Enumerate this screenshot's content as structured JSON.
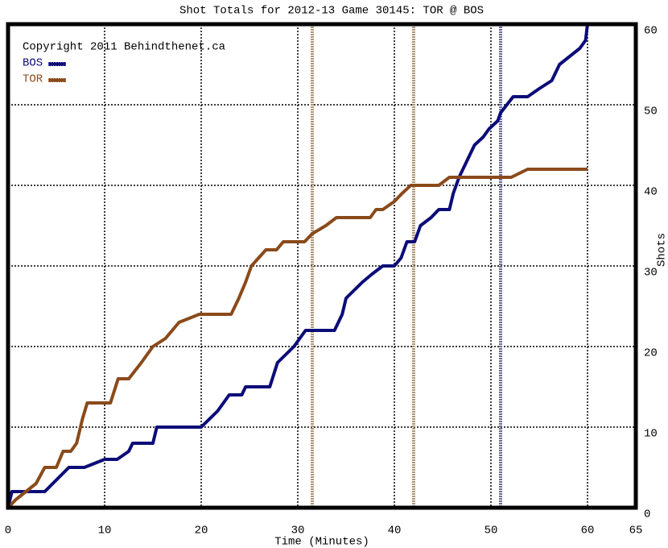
{
  "chart_data": {
    "type": "line",
    "title": "Shot Totals for 2012-13 Game 30145: TOR @ BOS",
    "annotation": "Copyright 2011 Behindthenet.ca",
    "x_label": "Time (Minutes)",
    "y_label": "Shots",
    "xlim": [
      0,
      65
    ],
    "xticks": [
      0,
      10,
      20,
      30,
      40,
      50,
      60,
      65
    ],
    "ylim": [
      0,
      60
    ],
    "yticks": [
      0,
      10,
      20,
      30,
      40,
      50,
      60
    ],
    "grid": true,
    "goals": [
      {
        "x": 31.5,
        "color": "#b09878"
      },
      {
        "x": 42,
        "color": "#b09878"
      },
      {
        "x": 51,
        "color": "#6a6aa8"
      }
    ],
    "series": [
      {
        "name": "BOS",
        "color": "#0c0c78",
        "x": [
          0,
          0.4,
          3.8,
          6.3,
          7.9,
          10,
          11.3,
          12.5,
          12.9,
          15,
          15.4,
          20,
          21.7,
          22.9,
          24.2,
          24.6,
          27.1,
          27.9,
          29.6,
          30.8,
          33.8,
          34.6,
          35,
          36.7,
          37.7,
          38.8,
          40,
          40.7,
          41.3,
          42.1,
          42.7,
          43.8,
          44.6,
          45.7,
          46.1,
          46.7,
          47.5,
          48.3,
          49.2,
          49.8,
          50.7,
          51,
          52.3,
          53.8,
          55,
          56.3,
          57.1,
          59.2,
          59.8,
          59.9,
          60
        ],
        "values": [
          0,
          2,
          2,
          5,
          5,
          6,
          6,
          7,
          8,
          8,
          10,
          10,
          12,
          14,
          14,
          15,
          15,
          18,
          20,
          22,
          22,
          24,
          26,
          28,
          29,
          30,
          30,
          31,
          33,
          33,
          35,
          36,
          37,
          37,
          39,
          41,
          43,
          45,
          46,
          47,
          48,
          49,
          51,
          51,
          52,
          53,
          55,
          57,
          58,
          59,
          60
        ]
      },
      {
        "name": "TOR",
        "color": "#8a4a1a",
        "x": [
          0,
          0.8,
          2.9,
          3.8,
          5,
          5.7,
          6.5,
          7.1,
          7.7,
          8.2,
          10.6,
          11.4,
          12.5,
          13.8,
          15,
          16.3,
          17.7,
          19.8,
          23.1,
          23.9,
          24.6,
          25.2,
          26.7,
          27.8,
          28.5,
          30.7,
          31.5,
          32.9,
          34,
          37.5,
          38.1,
          38.8,
          40,
          40.8,
          41.7,
          44.6,
          45.7,
          52.1,
          53.8,
          60
        ],
        "values": [
          0,
          1,
          3,
          5,
          5,
          7,
          7,
          8,
          11,
          13,
          13,
          16,
          16,
          18,
          20,
          21,
          23,
          24,
          24,
          26,
          28,
          30,
          32,
          32,
          33,
          33,
          34,
          35,
          36,
          36,
          37,
          37,
          38,
          39,
          40,
          40,
          41,
          41,
          42,
          42
        ]
      }
    ]
  }
}
